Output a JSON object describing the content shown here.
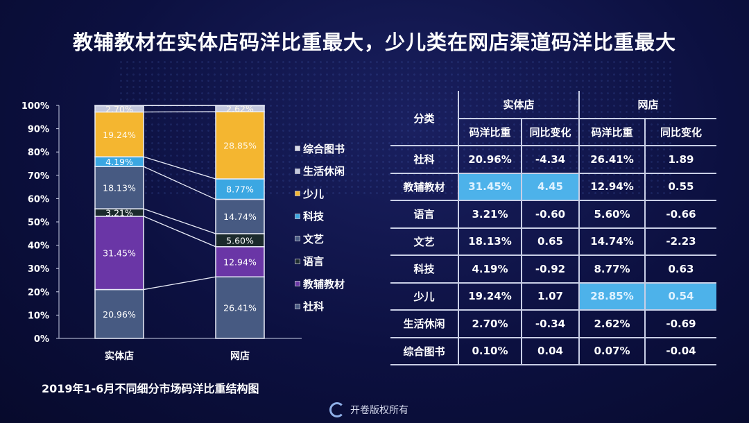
{
  "title": "教辅教材在实体店码洋比重最大，少儿类在网店渠道码洋比重最大",
  "caption": "2019年1-6月不同细分市场码洋比重结构图",
  "footer": "开卷版权所有",
  "colors": {
    "社科": "#475a82",
    "教辅教材": "#6a36a6",
    "语言": "#1b2a2c",
    "文艺": "#475a82",
    "科技": "#3ba7e2",
    "少儿": "#f4b630",
    "生活休闲": "#c3c7dc",
    "综合图书": "#d8dbe9",
    "highlight": "#4db2ea"
  },
  "chart_data": {
    "type": "bar",
    "stacked": true,
    "categories": [
      "实体店",
      "网店"
    ],
    "ylim": [
      0,
      100
    ],
    "yticks": [
      "0%",
      "10%",
      "20%",
      "30%",
      "40%",
      "50%",
      "60%",
      "70%",
      "80%",
      "90%",
      "100%"
    ],
    "legend_position": "right",
    "series": [
      {
        "name": "社科",
        "values": [
          20.96,
          26.41
        ],
        "labels": [
          "20.96%",
          "26.41%"
        ]
      },
      {
        "name": "教辅教材",
        "values": [
          31.45,
          12.94
        ],
        "labels": [
          "31.45%",
          "12.94%"
        ]
      },
      {
        "name": "语言",
        "values": [
          3.21,
          5.6
        ],
        "labels": [
          "3.21%",
          "5.60%"
        ]
      },
      {
        "name": "文艺",
        "values": [
          18.13,
          14.74
        ],
        "labels": [
          "18.13%",
          "14.74%"
        ]
      },
      {
        "name": "科技",
        "values": [
          4.19,
          8.77
        ],
        "labels": [
          "4.19%",
          "8.77%"
        ]
      },
      {
        "name": "少儿",
        "values": [
          19.24,
          28.85
        ],
        "labels": [
          "19.24%",
          "28.85%"
        ]
      },
      {
        "name": "生活休闲",
        "values": [
          2.7,
          2.62
        ],
        "labels": [
          "2.70%",
          "2.62%"
        ]
      },
      {
        "name": "综合图书",
        "values": [
          0.1,
          0.07
        ],
        "labels": [
          "",
          ""
        ]
      }
    ]
  },
  "table": {
    "h_category": "分类",
    "h_store": "实体店",
    "h_online": "网店",
    "h_share": "码洋比重",
    "h_change": "同比变化",
    "rows": [
      {
        "cat": "社科",
        "s1": "20.96%",
        "c1": "-4.34",
        "s2": "26.41%",
        "c2": "1.89"
      },
      {
        "cat": "教辅教材",
        "s1": "31.45%",
        "c1": "4.45",
        "s2": "12.94%",
        "c2": "0.55",
        "hl1": true
      },
      {
        "cat": "语言",
        "s1": "3.21%",
        "c1": "-0.60",
        "s2": "5.60%",
        "c2": "-0.66"
      },
      {
        "cat": "文艺",
        "s1": "18.13%",
        "c1": "0.65",
        "s2": "14.74%",
        "c2": "-2.23"
      },
      {
        "cat": "科技",
        "s1": "4.19%",
        "c1": "-0.92",
        "s2": "8.77%",
        "c2": "0.63"
      },
      {
        "cat": "少儿",
        "s1": "19.24%",
        "c1": "1.07",
        "s2": "28.85%",
        "c2": "0.54",
        "hl2": true
      },
      {
        "cat": "生活休闲",
        "s1": "2.70%",
        "c1": "-0.34",
        "s2": "2.62%",
        "c2": "-0.69"
      },
      {
        "cat": "综合图书",
        "s1": "0.10%",
        "c1": "0.04",
        "s2": "0.07%",
        "c2": "-0.04"
      }
    ]
  }
}
